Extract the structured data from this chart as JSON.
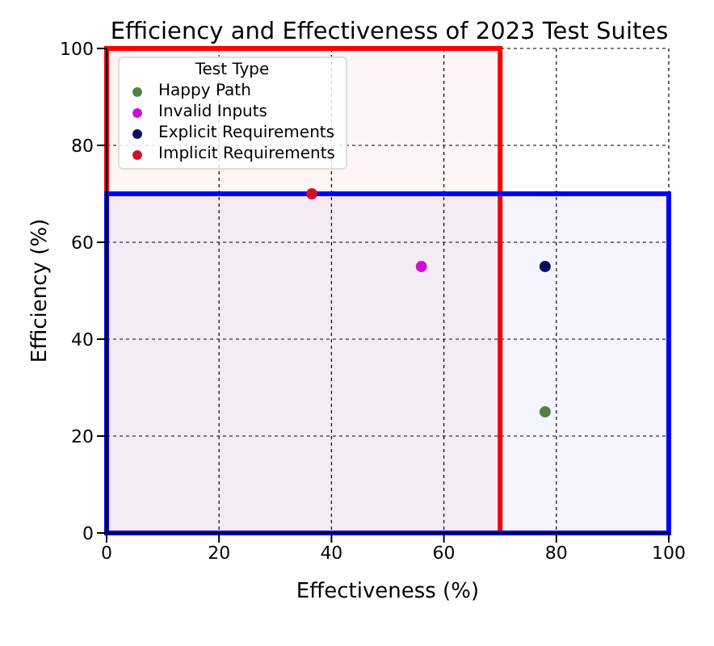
{
  "chart_data": {
    "type": "scatter",
    "title": "Efficiency and Effectiveness of 2023 Test Suites",
    "xlabel": "Effectiveness (%)",
    "ylabel": "Efficiency (%)",
    "legend_title": "Test Type",
    "series": [
      {
        "name": "Happy Path",
        "color": "#548040",
        "x": [
          78
        ],
        "values": [
          25
        ]
      },
      {
        "name": "Invalid Inputs",
        "color": "#d010d0",
        "x": [
          56
        ],
        "values": [
          55
        ]
      },
      {
        "name": "Explicit Requirements",
        "color": "#0a0a60",
        "x": [
          78
        ],
        "values": [
          55
        ]
      },
      {
        "name": "Implicit Requirements",
        "color": "#d0102a",
        "x": [
          36.5
        ],
        "values": [
          70
        ]
      }
    ],
    "xlim": [
      0,
      100
    ],
    "ylim": [
      0,
      100
    ],
    "xticks": [
      0,
      20,
      40,
      60,
      80,
      100
    ],
    "yticks": [
      0,
      20,
      40,
      60,
      80,
      100
    ],
    "bands": [
      {
        "axis": "x",
        "from": 0,
        "to": 70,
        "color": "#ff0000"
      },
      {
        "axis": "y",
        "from": 0,
        "to": 70,
        "color": "#0000ff"
      }
    ],
    "grid": true,
    "legend": "top left",
    "marker": "circle"
  }
}
